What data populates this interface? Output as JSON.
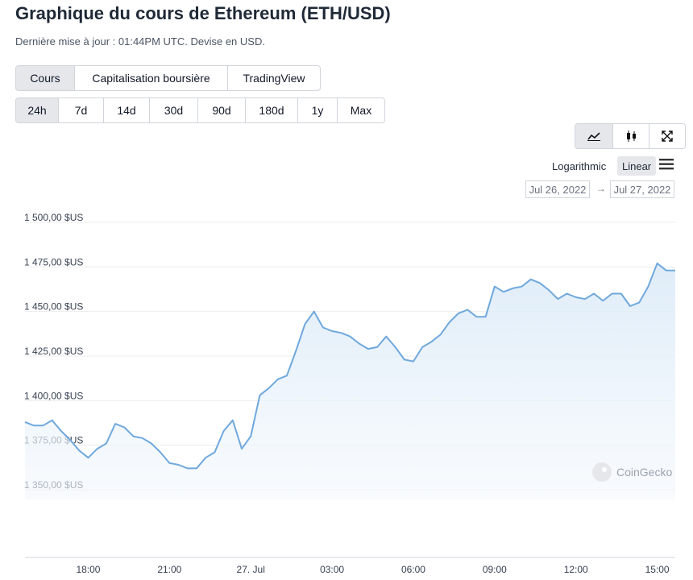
{
  "header": {
    "title": "Graphique du cours de Ethereum (ETH/USD)",
    "subtitle": "Dernière mise à jour : 01:44PM UTC. Devise en USD."
  },
  "tabs": [
    "Cours",
    "Capitalisation boursière",
    "TradingView"
  ],
  "ranges": [
    "24h",
    "7d",
    "14d",
    "30d",
    "90d",
    "180d",
    "1y",
    "Max"
  ],
  "scale_options": [
    "Logarithmic",
    "Linear"
  ],
  "date_range": {
    "from": "Jul 26, 2022",
    "separator": "→",
    "to": "Jul 27, 2022"
  },
  "watermark": "CoinGecko",
  "chart_data": {
    "type": "area",
    "categories": [
      null,
      null,
      null,
      null,
      null,
      null,
      null,
      "18:00",
      null,
      null,
      null,
      null,
      null,
      null,
      null,
      null,
      "21:00",
      null,
      null,
      null,
      null,
      null,
      null,
      null,
      null,
      "27. Jul",
      null,
      null,
      null,
      null,
      null,
      null,
      null,
      null,
      "03:00",
      null,
      null,
      null,
      null,
      null,
      null,
      null,
      null,
      "06:00",
      null,
      null,
      null,
      null,
      null,
      null,
      null,
      null,
      "09:00",
      null,
      null,
      null,
      null,
      null,
      null,
      null,
      null,
      "12:00",
      null,
      null,
      null,
      null,
      null,
      null,
      null,
      null,
      "15:00",
      null,
      null
    ],
    "values": [
      1388,
      1386,
      1386,
      1389,
      1383,
      1378,
      1372,
      1368,
      1373,
      1376,
      1387,
      1385,
      1380,
      1379,
      1376,
      1371,
      1365,
      1364,
      1362,
      1362,
      1368,
      1371,
      1383,
      1389,
      1373,
      1380,
      1403,
      1407,
      1412,
      1414,
      1428,
      1443,
      1450,
      1441,
      1439,
      1438,
      1436,
      1432,
      1429,
      1430,
      1436,
      1430,
      1423,
      1422,
      1430,
      1433,
      1437,
      1444,
      1449,
      1451,
      1447,
      1447,
      1464,
      1461,
      1463,
      1464,
      1468,
      1466,
      1462,
      1457,
      1460,
      1458,
      1457,
      1460,
      1456,
      1460,
      1460,
      1453,
      1455,
      1464,
      1477,
      1473,
      1473
    ],
    "color": "#6fa8dc",
    "ylim": [
      1350,
      1500
    ],
    "yticks": [
      {
        "value": 1350,
        "label": "1 350,00 $US"
      },
      {
        "value": 1375,
        "label": "1 375,00 $US"
      },
      {
        "value": 1400,
        "label": "1 400,00 $US"
      },
      {
        "value": 1425,
        "label": "1 425,00 $US"
      },
      {
        "value": 1450,
        "label": "1 450,00 $US"
      },
      {
        "value": 1475,
        "label": "1 475,00 $US"
      },
      {
        "value": 1500,
        "label": "1 500,00 $US"
      }
    ],
    "grid": true
  }
}
